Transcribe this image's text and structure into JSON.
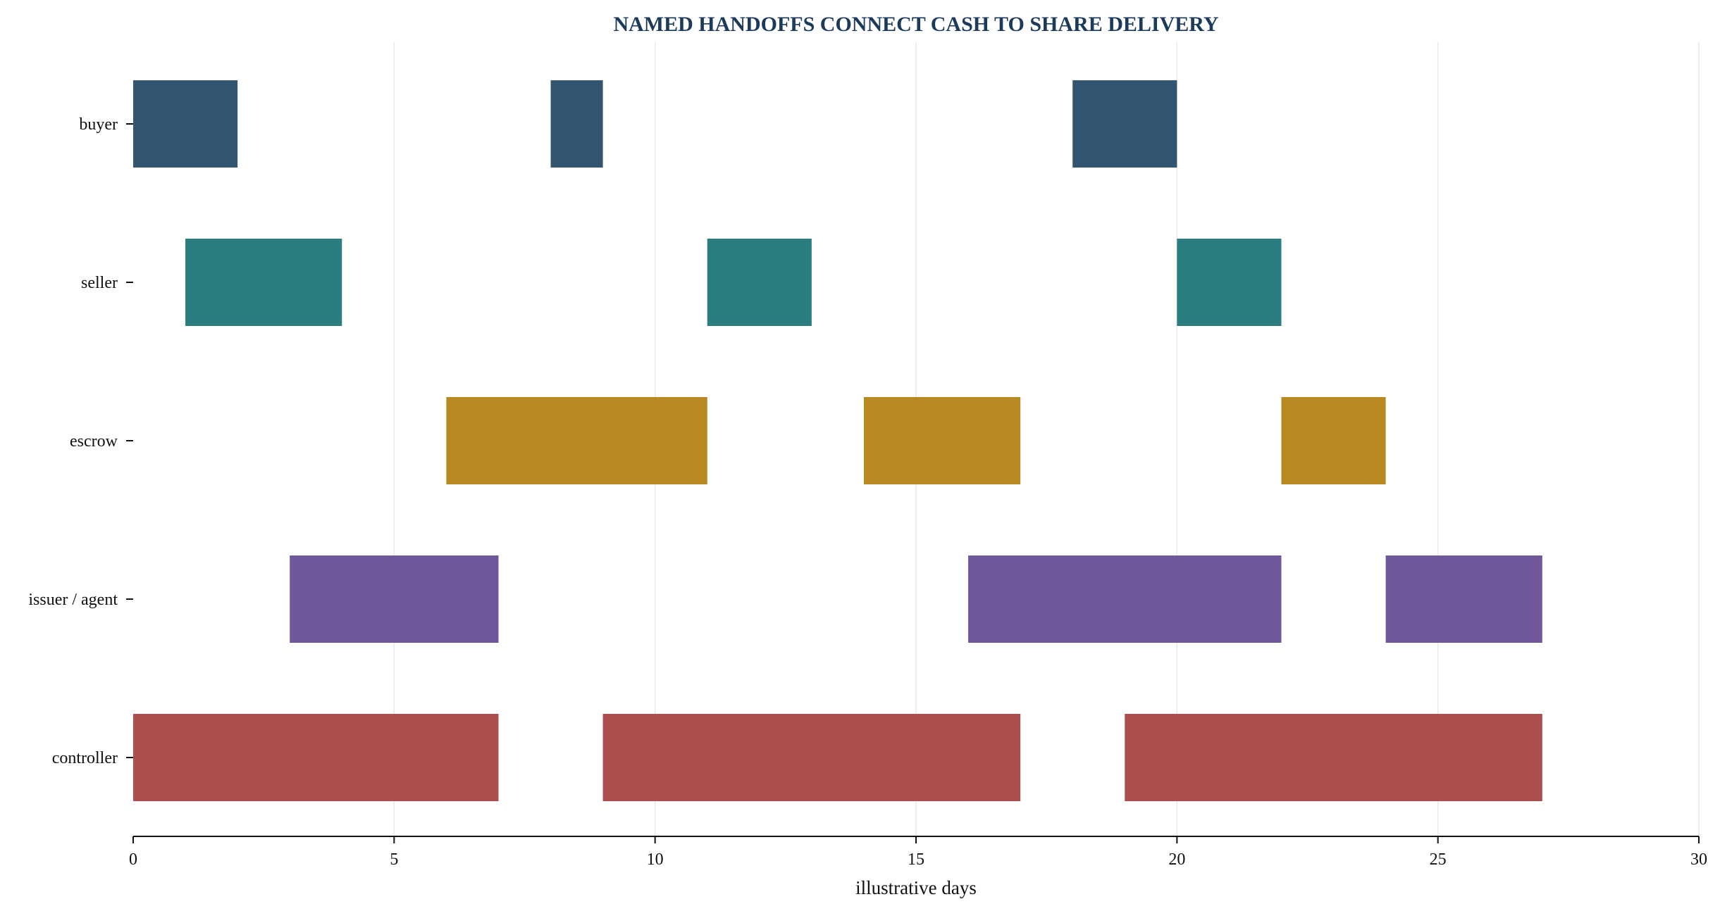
{
  "chart_data": {
    "type": "gantt",
    "title": "NAMED HANDOFFS CONNECT CASH TO SHARE DELIVERY",
    "xlabel": "illustrative days",
    "ylabel": "",
    "xlim": [
      0,
      30
    ],
    "xticks": [
      0,
      5,
      10,
      15,
      20,
      25,
      30
    ],
    "grid": "vertical",
    "legend": "none",
    "title_color": "#1b3a5c",
    "lanes": [
      {
        "label": "buyer",
        "color": "#34556f",
        "segments": [
          [
            0,
            2
          ],
          [
            8,
            9
          ],
          [
            18,
            20
          ]
        ]
      },
      {
        "label": "seller",
        "color": "#2a7e80",
        "segments": [
          [
            1,
            4
          ],
          [
            11,
            13
          ],
          [
            20,
            22
          ]
        ]
      },
      {
        "label": "escrow",
        "color": "#b78920",
        "segments": [
          [
            6,
            11
          ],
          [
            14,
            17
          ],
          [
            22,
            24
          ]
        ]
      },
      {
        "label": "issuer / agent",
        "color": "#705799",
        "segments": [
          [
            3,
            7
          ],
          [
            16,
            22
          ],
          [
            24,
            27
          ]
        ]
      },
      {
        "label": "controller",
        "color": "#ad4e4e",
        "segments": [
          [
            0,
            7
          ],
          [
            9,
            17
          ],
          [
            19,
            27
          ]
        ]
      }
    ]
  }
}
